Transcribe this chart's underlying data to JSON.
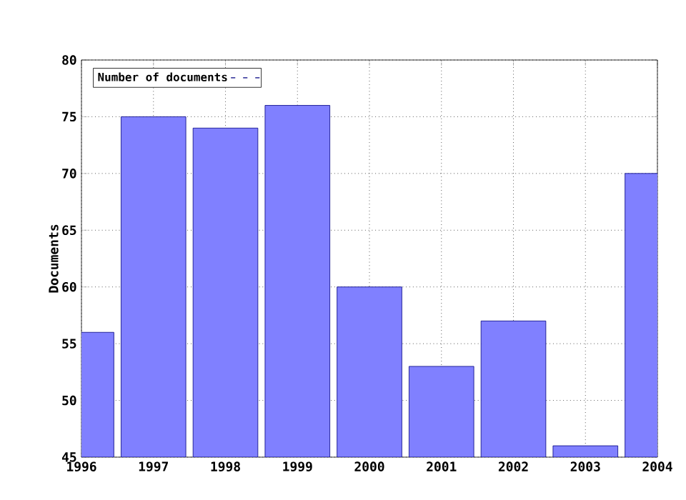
{
  "chart_data": {
    "type": "bar",
    "ylabel": "Documents",
    "x": [
      1996,
      1997,
      1998,
      1999,
      2000,
      2001,
      2002,
      2003,
      2004
    ],
    "series": [
      {
        "name": "Number of documents",
        "color": "#8080ff",
        "values": [
          56,
          75,
          74,
          76,
          60,
          53,
          57,
          46,
          70
        ]
      }
    ],
    "xlim": [
      1996,
      2004
    ],
    "xticks": [
      1996,
      1997,
      1998,
      1999,
      2000,
      2001,
      2002,
      2003,
      2004
    ],
    "ylim": [
      45,
      80
    ],
    "yticks": [
      45,
      50,
      55,
      60,
      65,
      70,
      75,
      80
    ],
    "grid": true,
    "legend": "top left"
  }
}
